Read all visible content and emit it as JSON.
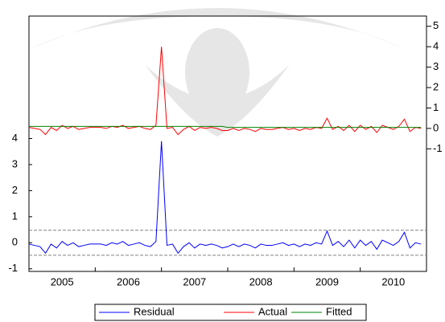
{
  "chart_data": {
    "type": "line",
    "x": [
      2005,
      2005.083,
      2005.167,
      2005.25,
      2005.333,
      2005.417,
      2005.5,
      2005.583,
      2005.667,
      2005.75,
      2005.833,
      2005.917,
      2006,
      2006.083,
      2006.167,
      2006.25,
      2006.333,
      2006.417,
      2006.5,
      2006.583,
      2006.667,
      2006.75,
      2006.833,
      2006.917,
      2007,
      2007.083,
      2007.167,
      2007.25,
      2007.333,
      2007.417,
      2007.5,
      2007.583,
      2007.667,
      2007.75,
      2007.833,
      2007.917,
      2008,
      2008.083,
      2008.167,
      2008.25,
      2008.333,
      2008.417,
      2008.5,
      2008.583,
      2008.667,
      2008.75,
      2008.833,
      2008.917,
      2009,
      2009.083,
      2009.167,
      2009.25,
      2009.333,
      2009.417,
      2009.5,
      2009.583,
      2009.667,
      2009.75,
      2009.833,
      2009.917,
      2010,
      2010.083,
      2010.167,
      2010.25,
      2010.333,
      2010.417,
      2010.5,
      2010.583,
      2010.667,
      2010.75,
      2010.833,
      2010.917
    ],
    "series": [
      {
        "name": "Residual",
        "color": "#0000ff",
        "axis": "y",
        "values": [
          -0.05,
          -0.1,
          -0.15,
          -0.4,
          -0.05,
          -0.2,
          0.05,
          -0.1,
          0.0,
          -0.15,
          -0.1,
          -0.05,
          -0.05,
          -0.05,
          -0.1,
          0.0,
          -0.05,
          0.05,
          -0.1,
          -0.05,
          0.0,
          -0.1,
          -0.15,
          0.05,
          3.9,
          -0.1,
          -0.05,
          -0.4,
          -0.15,
          0.0,
          -0.2,
          -0.05,
          -0.1,
          -0.05,
          -0.1,
          -0.2,
          -0.15,
          -0.05,
          -0.15,
          -0.05,
          -0.1,
          -0.2,
          -0.05,
          -0.1,
          -0.1,
          -0.05,
          0.0,
          -0.1,
          -0.05,
          -0.15,
          -0.05,
          -0.1,
          0.0,
          -0.05,
          0.45,
          -0.1,
          0.05,
          -0.15,
          0.1,
          -0.2,
          0.1,
          -0.1,
          0.05,
          -0.25,
          0.1,
          0.0,
          -0.1,
          0.05,
          0.4,
          -0.2,
          0.0,
          -0.05
        ]
      },
      {
        "name": "Actual",
        "color": "#ff0000",
        "axis": "y2",
        "values": [
          0.05,
          0,
          -0.05,
          -0.3,
          0.05,
          -0.1,
          0.15,
          0,
          0.1,
          -0.05,
          0,
          0.05,
          0.05,
          0.05,
          0,
          0.1,
          0.05,
          0.15,
          0,
          0.05,
          0.1,
          0,
          -0.05,
          0.15,
          4.0,
          0,
          0.05,
          -0.3,
          -0.05,
          0.1,
          -0.1,
          0.05,
          0,
          0.05,
          0,
          -0.1,
          -0.1,
          0,
          -0.1,
          0,
          -0.05,
          -0.15,
          0,
          -0.05,
          -0.05,
          0,
          0.05,
          -0.05,
          0,
          -0.1,
          0,
          -0.05,
          0.05,
          0,
          0.5,
          -0.05,
          0.1,
          -0.1,
          0.15,
          -0.15,
          0.15,
          -0.05,
          0.1,
          -0.2,
          0.15,
          0.05,
          -0.05,
          0.1,
          0.45,
          -0.15,
          0.05,
          0
        ]
      },
      {
        "name": "Fitted",
        "color": "#008000",
        "axis": "y2",
        "values": [
          0.1,
          0.1,
          0.1,
          0.1,
          0.1,
          0.1,
          0.1,
          0.1,
          0.1,
          0.1,
          0.1,
          0.1,
          0.1,
          0.1,
          0.1,
          0.1,
          0.1,
          0.1,
          0.1,
          0.1,
          0.1,
          0.1,
          0.1,
          0.1,
          0.1,
          0.1,
          0.1,
          0.1,
          0.1,
          0.1,
          0.1,
          0.1,
          0.1,
          0.1,
          0.1,
          0.1,
          0.05,
          0.05,
          0.05,
          0.05,
          0.05,
          0.05,
          0.05,
          0.05,
          0.05,
          0.05,
          0.05,
          0.05,
          0.05,
          0.05,
          0.05,
          0.05,
          0.05,
          0.05,
          0.05,
          0.05,
          0.05,
          0.05,
          0.05,
          0.05,
          0.05,
          0.05,
          0.05,
          0.05,
          0.05,
          0.05,
          0.05,
          0.05,
          0.05,
          0.05,
          0.05,
          0.05
        ]
      }
    ],
    "sd_bands": [
      -0.48,
      0.48
    ],
    "xlim": [
      2005,
      2011
    ],
    "xticks": [
      {
        "value": 2005.5,
        "label": "2005"
      },
      {
        "value": 2006.5,
        "label": "2006"
      },
      {
        "value": 2007.5,
        "label": "2007"
      },
      {
        "value": 2008.5,
        "label": "2008"
      },
      {
        "value": 2009.5,
        "label": "2009"
      },
      {
        "value": 2010.5,
        "label": "2010"
      }
    ],
    "x_boundaries": [
      2006,
      2007,
      2008,
      2009,
      2010
    ],
    "ylim": [
      -1.1,
      8.7
    ],
    "yticks": [
      -1,
      0,
      1,
      2,
      3,
      4
    ],
    "y2lim": [
      -7,
      5.5
    ],
    "y2ticks": [
      -1,
      0,
      1,
      2,
      3,
      4,
      5
    ]
  }
}
